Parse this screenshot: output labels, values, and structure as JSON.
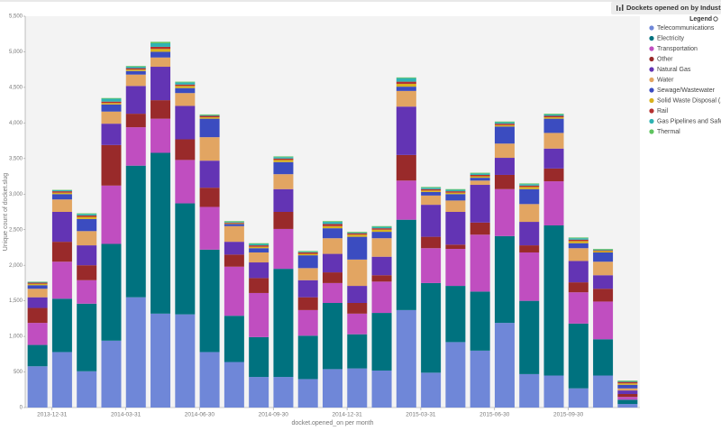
{
  "chart_data": {
    "type": "stacked_bar",
    "title": "Dockets opened on by Industry",
    "y_label": "Unique count of docket.slug",
    "x_label": "docket.opened_on per month",
    "legend_title": "Legend",
    "legend_position": "right",
    "grid": false,
    "ylim": [
      0,
      5500
    ],
    "yticks": [
      0,
      500,
      {
        "value": 1000,
        "label": "1,000"
      },
      {
        "value": 1500,
        "label": "1,500"
      },
      {
        "value": 2000,
        "label": "2,000"
      },
      {
        "value": 2500,
        "label": "2,500"
      },
      {
        "value": 3000,
        "label": "3,000"
      },
      {
        "value": 3500,
        "label": "3,500"
      },
      {
        "value": 4000,
        "label": "4,000"
      },
      {
        "value": 4500,
        "label": "4,500"
      },
      {
        "value": 5000,
        "label": "5,000"
      },
      {
        "value": 5500,
        "label": "5,500"
      }
    ],
    "xticks": [
      "2013-12-31",
      "2014-03-31",
      "2014-06-30",
      "2014-09-30",
      "2014-12-31",
      "2015-03-31",
      "2015-06-30",
      "2015-09-30"
    ],
    "categories": [
      null,
      null,
      null,
      null,
      null,
      null,
      null,
      null,
      null,
      null,
      null,
      null,
      null,
      null,
      null,
      null,
      null,
      null,
      null,
      null,
      null,
      null,
      null,
      null,
      null
    ],
    "series": [
      {
        "name": "Telecommunications",
        "color": "#6f87d8",
        "values": [
          580,
          780,
          510,
          940,
          1550,
          1320,
          1310,
          780,
          640,
          430,
          430,
          400,
          540,
          550,
          520,
          1370,
          490,
          920,
          800,
          1190,
          470,
          450,
          270,
          450,
          50
        ]
      },
      {
        "name": "Electricity",
        "color": "#00727f",
        "values": [
          300,
          750,
          950,
          1360,
          1850,
          2260,
          1560,
          1440,
          650,
          560,
          1520,
          610,
          930,
          480,
          810,
          1270,
          1260,
          790,
          830,
          1220,
          1030,
          2110,
          910,
          510,
          60
        ]
      },
      {
        "name": "Transportation",
        "color": "#c04ec0",
        "values": [
          310,
          520,
          330,
          820,
          540,
          480,
          610,
          600,
          690,
          620,
          560,
          360,
          280,
          290,
          440,
          550,
          490,
          520,
          800,
          660,
          680,
          620,
          440,
          530,
          40
        ]
      },
      {
        "name": "Other",
        "color": "#992a2a",
        "values": [
          210,
          280,
          210,
          570,
          190,
          260,
          290,
          270,
          170,
          210,
          240,
          180,
          150,
          150,
          90,
          360,
          160,
          60,
          170,
          200,
          100,
          180,
          140,
          180,
          40
        ]
      },
      {
        "name": "Natural Gas",
        "color": "#6334b4",
        "values": [
          150,
          420,
          280,
          300,
          390,
          470,
          470,
          380,
          180,
          220,
          320,
          240,
          260,
          240,
          260,
          680,
          450,
          460,
          530,
          240,
          330,
          280,
          300,
          190,
          50
        ]
      },
      {
        "name": "Water",
        "color": "#e2a562",
        "values": [
          120,
          175,
          200,
          170,
          160,
          130,
          180,
          330,
          220,
          140,
          210,
          170,
          220,
          370,
          260,
          220,
          130,
          160,
          60,
          200,
          250,
          220,
          180,
          190,
          30
        ]
      },
      {
        "name": "Sewage/Wastewater",
        "color": "#3b4cc0",
        "values": [
          50,
          75,
          170,
          100,
          50,
          80,
          70,
          260,
          30,
          60,
          170,
          180,
          140,
          320,
          90,
          60,
          50,
          90,
          40,
          240,
          210,
          200,
          70,
          130,
          50
        ]
      },
      {
        "name": "Solid Waste Disposal (...",
        "color": "#d8b21e",
        "values": [
          20,
          20,
          30,
          20,
          20,
          40,
          30,
          20,
          10,
          20,
          30,
          20,
          30,
          30,
          30,
          40,
          20,
          20,
          20,
          20,
          30,
          20,
          30,
          20,
          20
        ]
      },
      {
        "name": "Rail",
        "color": "#b5302f",
        "values": [
          15,
          20,
          20,
          20,
          20,
          30,
          20,
          20,
          10,
          20,
          20,
          20,
          30,
          20,
          20,
          30,
          20,
          20,
          20,
          20,
          20,
          20,
          20,
          10,
          20
        ]
      },
      {
        "name": "Gas Pipelines and Safety",
        "color": "#2fb3b3",
        "values": [
          10,
          15,
          20,
          40,
          20,
          50,
          30,
          10,
          10,
          20,
          20,
          10,
          30,
          10,
          20,
          50,
          20,
          20,
          20,
          20,
          20,
          20,
          20,
          10,
          10
        ]
      },
      {
        "name": "Thermal",
        "color": "#5fc45f",
        "values": [
          5,
          5,
          10,
          10,
          10,
          20,
          10,
          10,
          10,
          10,
          10,
          10,
          10,
          10,
          10,
          10,
          10,
          10,
          10,
          10,
          10,
          10,
          10,
          10,
          10
        ]
      }
    ]
  }
}
